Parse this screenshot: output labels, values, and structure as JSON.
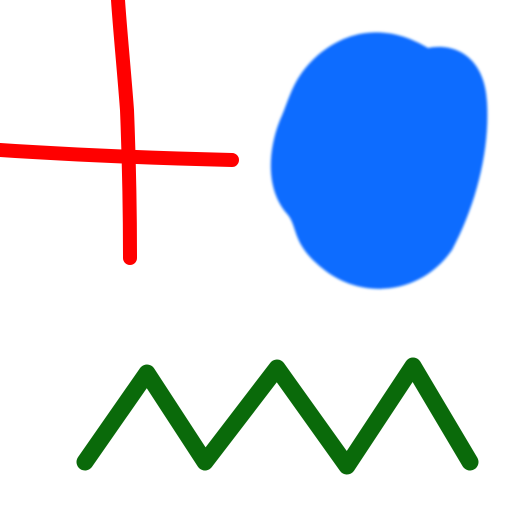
{
  "canvas": {
    "background": "#ffffff"
  },
  "shapes": {
    "cross": {
      "name": "red-cross-stroke",
      "color": "#ff0000"
    },
    "blob": {
      "name": "blue-filled-blob",
      "color": "#0a6cff"
    },
    "zigzag": {
      "name": "green-zigzag-stroke",
      "color": "#0a6a0a"
    }
  }
}
